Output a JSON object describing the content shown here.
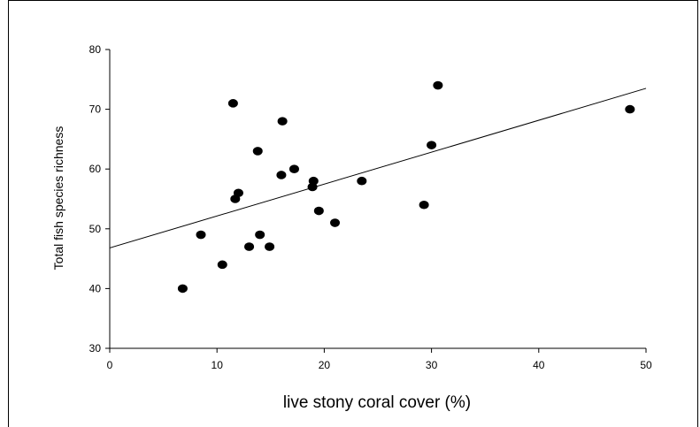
{
  "chart_data": {
    "type": "scatter",
    "title": "",
    "xlabel": "live stony coral cover (%)",
    "ylabel": "Total fish species richness",
    "xlim": [
      0,
      50
    ],
    "ylim": [
      30,
      80
    ],
    "xticks": [
      0,
      10,
      20,
      30,
      40,
      50
    ],
    "yticks": [
      30,
      40,
      50,
      60,
      70,
      80
    ],
    "grid": false,
    "legend": "none",
    "marker_color": "#000000",
    "points": [
      {
        "x": 6.8,
        "y": 40
      },
      {
        "x": 8.5,
        "y": 49
      },
      {
        "x": 10.5,
        "y": 44
      },
      {
        "x": 11.5,
        "y": 71
      },
      {
        "x": 11.7,
        "y": 55
      },
      {
        "x": 12.0,
        "y": 56
      },
      {
        "x": 13.0,
        "y": 47
      },
      {
        "x": 13.8,
        "y": 63
      },
      {
        "x": 14.0,
        "y": 49
      },
      {
        "x": 14.9,
        "y": 47
      },
      {
        "x": 16.0,
        "y": 59
      },
      {
        "x": 16.1,
        "y": 68
      },
      {
        "x": 17.2,
        "y": 60
      },
      {
        "x": 18.9,
        "y": 57
      },
      {
        "x": 19.0,
        "y": 58
      },
      {
        "x": 19.5,
        "y": 53
      },
      {
        "x": 21.0,
        "y": 51
      },
      {
        "x": 23.5,
        "y": 58
      },
      {
        "x": 29.3,
        "y": 54
      },
      {
        "x": 30.0,
        "y": 64
      },
      {
        "x": 30.6,
        "y": 74
      },
      {
        "x": 48.5,
        "y": 70
      }
    ],
    "trendline": {
      "x_start": 0,
      "y_start": 46.8,
      "x_end": 50,
      "y_end": 73.5
    }
  }
}
